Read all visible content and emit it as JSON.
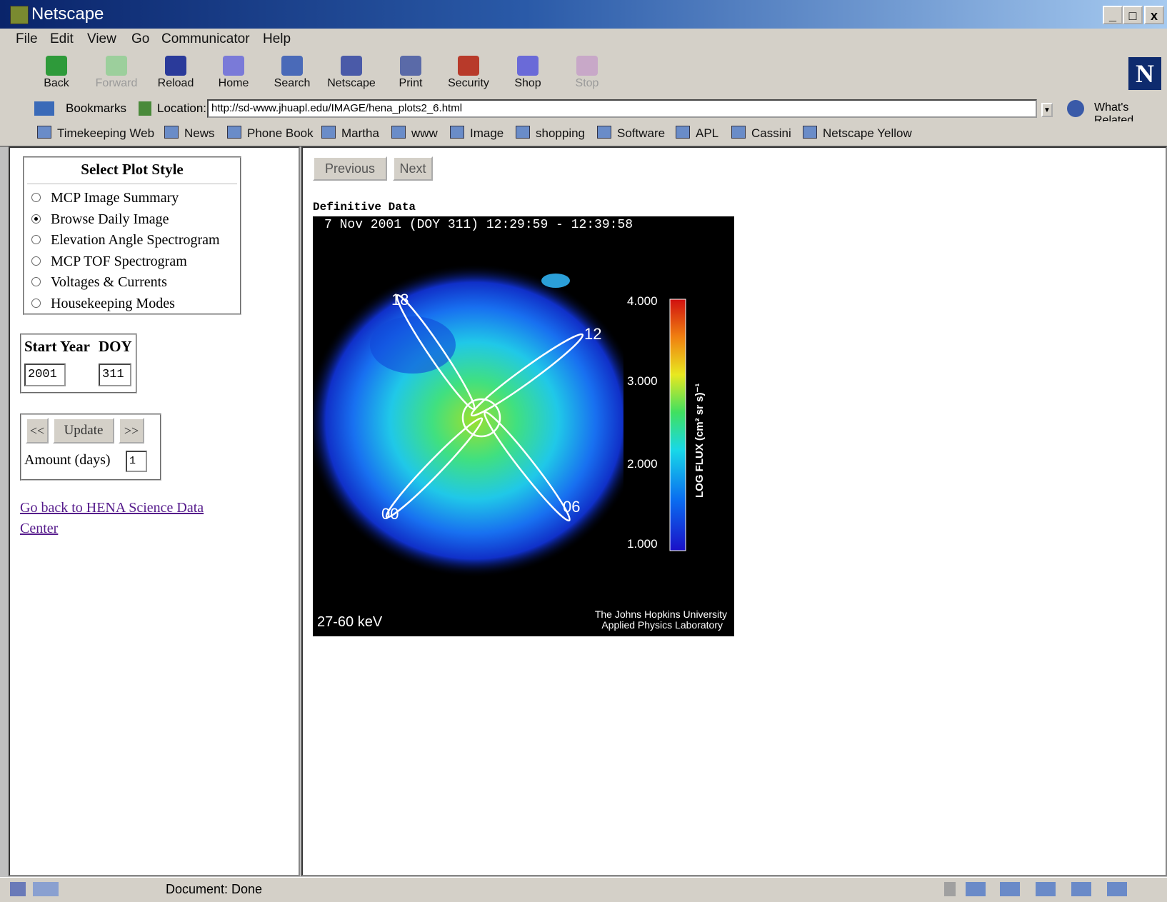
{
  "window": {
    "title": "Netscape",
    "controls": [
      "_",
      "□",
      "x"
    ]
  },
  "menu": [
    "File",
    "Edit",
    "View",
    "Go",
    "Communicator",
    "Help"
  ],
  "toolbar": {
    "back": "Back",
    "forward": "Forward",
    "reload": "Reload",
    "home": "Home",
    "search": "Search",
    "netscape": "Netscape",
    "print": "Print",
    "security": "Security",
    "shop": "Shop",
    "stop": "Stop"
  },
  "location": {
    "bookmarks": "Bookmarks",
    "label": "Location:",
    "url": "http://sd-www.jhuapl.edu/IMAGE/hena_plots2_6.html",
    "whats_related": "What's Related"
  },
  "personal_toolbar": [
    "Timekeeping Web",
    "News",
    "Phone Book",
    "Martha",
    "www",
    "Image",
    "shopping",
    "Software",
    "APL",
    "Cassini",
    "Netscape Yellow"
  ],
  "left": {
    "plot_style_title": "Select Plot Style",
    "plot_styles": [
      "MCP Image Summary",
      "Browse Daily Image",
      "Elevation Angle Spectrogram",
      "MCP TOF Spectrogram",
      "Voltages & Currents",
      "Housekeeping Modes"
    ],
    "selected_style": "Browse Daily Image",
    "start_year_label": "Start Year",
    "doy_label": "DOY",
    "start_year_value": "2001",
    "doy_value": "311",
    "prev_btn": "<<",
    "update_btn": "Update",
    "next_btn": ">>",
    "amount_label": "Amount (days)",
    "amount_value": "1",
    "back_link_line1": "Go back to HENA Science Data",
    "back_link_line2": "Center"
  },
  "right": {
    "previous_btn": "Previous",
    "next_btn": "Next",
    "data_label": "Definitive Data",
    "image": {
      "header": "7 Nov 2001   (DOY  311) 12:29:59 - 12:39:58",
      "labels": [
        "18",
        "12",
        "06",
        "00"
      ],
      "colorbar_ticks": [
        "4.000",
        "3.000",
        "2.000",
        "1.000"
      ],
      "colorbar_title": "LOG FLUX (cm² sr s)⁻¹",
      "energy": "27-60 keV",
      "credit_line1": "The Johns Hopkins University",
      "credit_line2": "Applied Physics Laboratory"
    }
  },
  "status": {
    "text": "Document: Done"
  }
}
